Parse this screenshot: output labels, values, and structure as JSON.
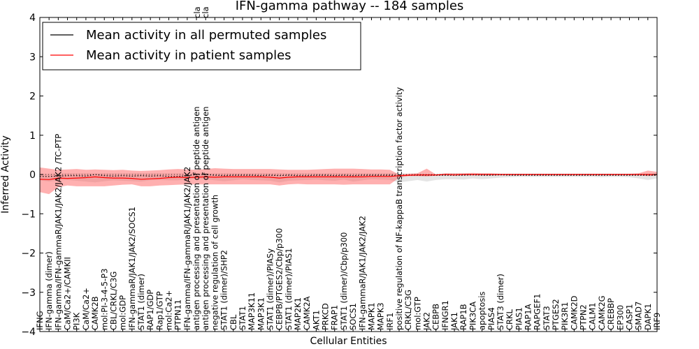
{
  "chart_data": {
    "type": "line",
    "title": "IFN-gamma pathway -- 184 samples",
    "xlabel": "Cellular Entities",
    "ylabel": "Inferred Activity",
    "ylim": [
      -4,
      4
    ],
    "yticks": [
      "4",
      "3",
      "2",
      "1",
      "0",
      "−1",
      "−2",
      "−3",
      "−4"
    ],
    "ytick_values": [
      4,
      3,
      2,
      1,
      0,
      -1,
      -2,
      -3,
      -4
    ],
    "grid": false,
    "legend_position": "top-left",
    "truncated_top_labels": [
      "cla",
      "cla"
    ],
    "categories": [
      "IFNG",
      "IFN-gamma (dimer)",
      "IFN-gamma/IFN-gammaR/JAK1/JAK2/JAK2  /TC-PTP",
      "CaM/Ca2+/CAMKII",
      "PI3K",
      "CaM/Ca2+",
      "CAMK2B",
      "mol:PI-3-4-5-P3",
      "CBL/CRKL/C3G",
      "mol:GDP",
      "IFN-gammaR/JAK1/JAK2/SOCS1",
      "STAT1 (dimer)",
      "RAP1/GDP",
      "Rap1/GTP",
      "mol:Ca2+",
      "PTPN11",
      "IFN-gamma/IFN-gammaR/JAK1/JAK2/JAK2",
      "antigen processing and presentation of peptide antigen",
      "antigen processing and presentation of peptide antigen",
      "negative regulation of cell growth",
      "STAT1 (dimer)/SHP2",
      "CBL",
      "STAT1",
      "MAP3K11",
      "MAP3K1",
      "STAT1 (dimer)/PIASy",
      "CEBPB/PTGES2/Cbp/p300",
      "STAT1 (dimer)/PIAS1",
      "MAP2K1",
      "CAMK2A",
      "AKT1",
      "PRKCD",
      "FRAP1",
      "STAT1 (dimer)/Cbp/p300",
      "SOCS1",
      "IFN-gammaR/JAK1/JAK2/JAK2",
      "MAPK1",
      "MAPK3",
      "IRF1",
      "positive regulation of NF-kappaB transcription factor activity",
      "CRKL/C3G",
      "mol:GTP",
      "JAK2",
      "CEBPB",
      "IFNGR1",
      "JAK1",
      "RAP1B",
      "PIK3CA",
      "apoptosis",
      "PIAS4",
      "STAT3 (dimer)",
      "CRKL",
      "PIAS1",
      "RAP1A",
      "RAPGEF1",
      "STAT3",
      "PTGES2",
      "PIK3R1",
      "CAMK2D",
      "PTPN2",
      "CALM1",
      "CAMK2G",
      "CREBBP",
      "EP300",
      "CASP1",
      "SMAD7",
      "DAPK1",
      "IRF9"
    ],
    "series": [
      {
        "name": "Mean activity in all permuted samples",
        "color": "#000000",
        "style": "dotted",
        "values": [
          -0.05,
          -0.05,
          -0.04,
          -0.03,
          -0.03,
          -0.04,
          0.0,
          -0.03,
          -0.04,
          -0.03,
          -0.04,
          -0.03,
          -0.04,
          -0.03,
          -0.05,
          -0.05,
          -0.03,
          0.0,
          0.0,
          -0.02,
          -0.03,
          -0.02,
          -0.02,
          -0.02,
          -0.03,
          -0.02,
          -0.03,
          -0.02,
          -0.03,
          -0.03,
          -0.02,
          -0.02,
          -0.03,
          -0.02,
          -0.03,
          -0.02,
          -0.02,
          -0.02,
          -0.02,
          -0.03,
          -0.02,
          -0.02,
          -0.02,
          -0.02,
          -0.02,
          -0.02,
          -0.02,
          -0.01,
          -0.02,
          -0.02,
          -0.01,
          -0.02,
          -0.02,
          -0.02,
          -0.02,
          -0.02,
          -0.02,
          -0.02,
          -0.02,
          -0.02,
          -0.02,
          -0.02,
          -0.02,
          -0.02,
          -0.02,
          -0.02,
          -0.02,
          -0.02
        ],
        "band_upper": [
          0.02,
          0.02,
          0.03,
          0.03,
          0.03,
          0.03,
          0.03,
          0.03,
          0.03,
          0.03,
          0.03,
          0.03,
          0.03,
          0.03,
          0.03,
          0.03,
          0.03,
          0.03,
          0.03,
          0.03,
          0.03,
          0.03,
          0.03,
          0.03,
          0.03,
          0.03,
          0.03,
          0.03,
          0.03,
          0.03,
          0.03,
          0.03,
          0.03,
          0.03,
          0.03,
          0.03,
          0.03,
          0.03,
          0.03,
          0.03,
          0.02,
          0.03,
          0.02,
          0.02,
          0.02,
          0.03,
          0.02,
          0.02,
          0.02,
          0.02,
          0.02,
          0.02,
          0.02,
          0.02,
          0.02,
          0.02,
          0.02,
          0.02,
          0.02,
          0.02,
          0.02,
          0.02,
          0.02,
          0.02,
          0.02,
          0.02,
          0.02,
          0.02
        ],
        "band_lower": [
          -0.15,
          -0.18,
          -0.15,
          -0.14,
          -0.16,
          -0.18,
          -0.2,
          -0.17,
          -0.15,
          -0.16,
          -0.17,
          -0.18,
          -0.15,
          -0.14,
          -0.15,
          -0.15,
          -0.13,
          -0.1,
          -0.12,
          -0.15,
          -0.17,
          -0.15,
          -0.12,
          -0.14,
          -0.15,
          -0.16,
          -0.2,
          -0.16,
          -0.15,
          -0.14,
          -0.13,
          -0.15,
          -0.16,
          -0.13,
          -0.18,
          -0.15,
          -0.12,
          -0.13,
          -0.14,
          -0.2,
          -0.17,
          -0.14,
          -0.18,
          -0.14,
          -0.12,
          -0.12,
          -0.13,
          -0.1,
          -0.12,
          -0.1,
          -0.08,
          -0.07,
          -0.06,
          -0.06,
          -0.06,
          -0.06,
          -0.06,
          -0.06,
          -0.06,
          -0.06,
          -0.06,
          -0.07,
          -0.06,
          -0.06,
          -0.07,
          -0.1,
          -0.14,
          -0.1
        ]
      },
      {
        "name": "Mean activity in patient samples",
        "color": "#ff0000",
        "style": "solid",
        "values": [
          -0.12,
          -0.13,
          -0.09,
          -0.1,
          -0.09,
          -0.08,
          -0.06,
          -0.08,
          -0.09,
          -0.09,
          -0.1,
          -0.12,
          -0.11,
          -0.1,
          -0.08,
          -0.07,
          -0.08,
          -0.07,
          -0.06,
          -0.07,
          -0.06,
          -0.06,
          -0.06,
          -0.06,
          -0.06,
          -0.07,
          -0.09,
          -0.07,
          -0.06,
          -0.06,
          -0.06,
          -0.06,
          -0.06,
          -0.06,
          -0.06,
          -0.06,
          -0.05,
          -0.05,
          -0.05,
          -0.03,
          -0.02,
          -0.01,
          -0.01,
          -0.01,
          0.0,
          -0.01,
          0.0,
          0.0,
          0.0,
          0.0,
          0.0,
          0.0,
          0.0,
          0.0,
          0.0,
          0.0,
          0.0,
          0.0,
          0.0,
          0.0,
          0.0,
          0.0,
          0.0,
          0.0,
          0.0,
          0.0,
          0.0,
          0.0
        ],
        "band_upper": [
          0.18,
          0.15,
          0.12,
          0.13,
          0.14,
          0.12,
          0.13,
          0.12,
          0.11,
          0.12,
          0.1,
          0.09,
          0.1,
          0.11,
          0.13,
          0.14,
          0.13,
          0.12,
          0.14,
          0.16,
          0.15,
          0.14,
          0.14,
          0.14,
          0.14,
          0.14,
          0.13,
          0.12,
          0.12,
          0.12,
          0.13,
          0.14,
          0.15,
          0.15,
          0.15,
          0.14,
          0.13,
          0.13,
          0.12,
          0.0,
          0.02,
          0.03,
          0.15,
          0.0,
          0.03,
          0.03,
          0.03,
          0.04,
          0.03,
          0.03,
          0.02,
          0.02,
          0.02,
          0.02,
          0.02,
          0.02,
          0.02,
          0.02,
          0.02,
          0.02,
          0.02,
          0.02,
          0.02,
          0.02,
          0.02,
          0.03,
          0.1,
          0.07
        ],
        "band_lower": [
          -0.45,
          -0.5,
          -0.32,
          -0.28,
          -0.3,
          -0.3,
          -0.3,
          -0.3,
          -0.28,
          -0.26,
          -0.25,
          -0.3,
          -0.3,
          -0.28,
          -0.27,
          -0.26,
          -0.25,
          -0.25,
          -0.25,
          -0.25,
          -0.25,
          -0.25,
          -0.25,
          -0.25,
          -0.25,
          -0.25,
          -0.28,
          -0.25,
          -0.24,
          -0.25,
          -0.25,
          -0.25,
          -0.25,
          -0.26,
          -0.25,
          -0.25,
          -0.25,
          -0.25,
          -0.25,
          -0.08,
          -0.04,
          -0.04,
          -0.05,
          -0.03,
          -0.02,
          -0.02,
          -0.02,
          -0.02,
          -0.02,
          -0.02,
          -0.02,
          -0.02,
          -0.02,
          -0.02,
          -0.02,
          -0.02,
          -0.02,
          -0.02,
          -0.02,
          -0.02,
          -0.02,
          -0.02,
          -0.02,
          -0.02,
          -0.02,
          -0.02,
          -0.04,
          -0.03
        ]
      }
    ]
  }
}
